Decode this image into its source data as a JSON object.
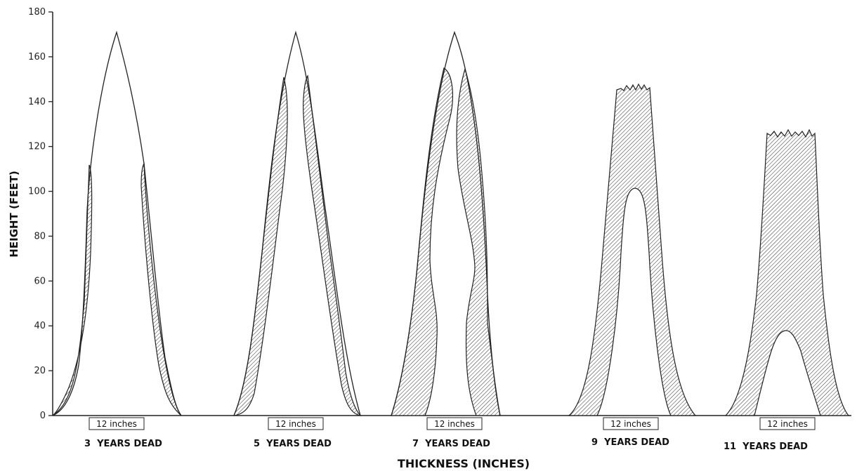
{
  "chart_data": {
    "type": "area",
    "xlabel": "THICKNESS (INCHES)",
    "ylabel": "HEIGHT (FEET)",
    "ylim": [
      0,
      180
    ],
    "yticks": [
      0,
      20,
      40,
      60,
      80,
      100,
      120,
      140,
      160,
      180
    ],
    "scale_label": "12 inches",
    "grid": false,
    "panels": [
      {
        "label": "3  YEARS DEAD",
        "tree_height": 171,
        "top_height": 171,
        "decay_top": 112,
        "inner_core_top": null
      },
      {
        "label": "5  YEARS DEAD",
        "tree_height": 171,
        "top_height": 171,
        "decay_top": 151,
        "inner_core_top": null
      },
      {
        "label": "7  YEARS DEAD",
        "tree_height": 171,
        "top_height": 171,
        "decay_top": 155,
        "inner_core_top": null
      },
      {
        "label": "9  YEARS DEAD",
        "tree_height": 147,
        "top_height": 147,
        "decay_top": 147,
        "inner_core_top": 101
      },
      {
        "label": "11  YEARS DEAD",
        "tree_height": 126,
        "top_height": 126,
        "decay_top": 126,
        "inner_core_top": 38
      }
    ]
  }
}
